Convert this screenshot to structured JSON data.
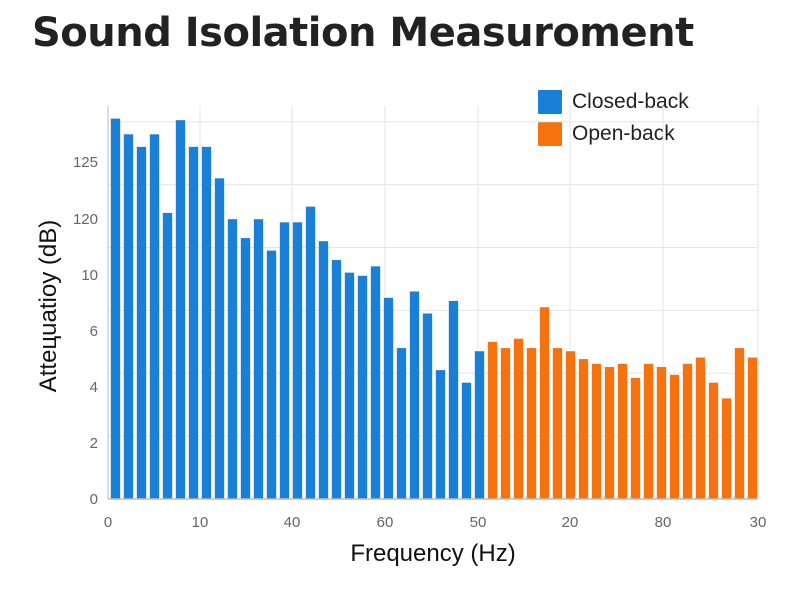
{
  "title": "Sound Isolation Measuroment",
  "colors": {
    "closed_back": "#1a7fd6",
    "open_back": "#f5720f",
    "grid": "#e6e6e6",
    "axis": "#bbbbbb"
  },
  "chart_data": {
    "type": "bar",
    "title": "Sound Isolation Measuroment",
    "xlabel": "Frequency (Hz)",
    "ylabel": "Atteцuatioy (dB)",
    "x_tick_labels": [
      "0",
      "10",
      "40",
      "60",
      "50",
      "20",
      "80",
      "30"
    ],
    "y_tick_labels": [
      "0",
      "2",
      "4",
      "6",
      "10",
      "120",
      "125"
    ],
    "grid": true,
    "legend_position": "top-right",
    "series": [
      {
        "name": "Closed-back",
        "color": "#1a7fd6",
        "values": [
          12.1,
          11.6,
          11.2,
          11.6,
          9.1,
          12.05,
          11.2,
          11.2,
          10.2,
          8.9,
          8.3,
          8.9,
          7.9,
          8.8,
          8.8,
          9.3,
          8.2,
          7.6,
          7.2,
          7.1,
          7.4,
          6.4,
          4.8,
          6.6,
          5.9,
          4.1,
          6.3,
          3.7,
          4.7
        ]
      },
      {
        "name": "Open-back",
        "color": "#f5720f",
        "values": [
          5.0,
          4.8,
          5.1,
          4.8,
          6.1,
          4.8,
          4.7,
          4.45,
          4.3,
          4.2,
          4.3,
          3.85,
          4.3,
          4.2,
          3.95,
          4.3,
          4.5,
          3.7,
          3.2,
          4.8,
          4.5
        ]
      }
    ]
  }
}
